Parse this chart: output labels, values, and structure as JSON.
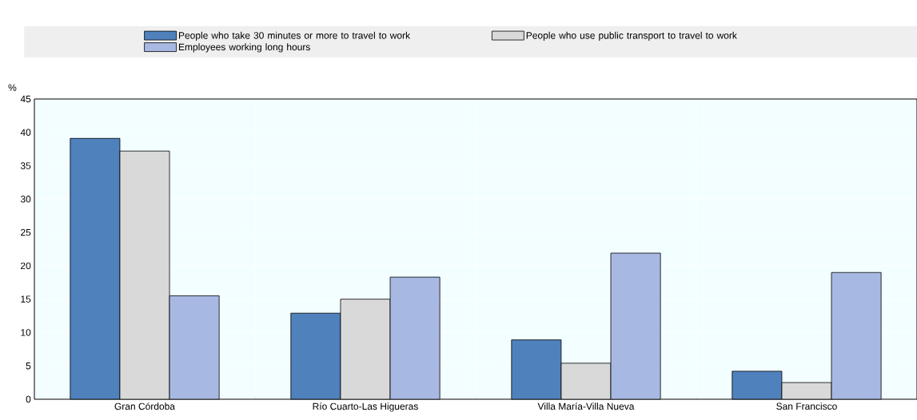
{
  "chart_data": {
    "type": "bar",
    "ylabel": "%",
    "categories": [
      "Gran Córdoba",
      "Río Cuarto-Las Higueras",
      "Villa María-Villa Nueva",
      "San Francisco"
    ],
    "series": [
      {
        "name": "People who take 30 minutes or more to travel to work",
        "color": "#4f81bd",
        "values": [
          39.1,
          12.9,
          8.9,
          4.2
        ]
      },
      {
        "name": "People who use public transport to travel to work",
        "color": "#d9d9d9",
        "values": [
          37.2,
          15.0,
          5.4,
          2.5
        ]
      },
      {
        "name": "Employees working long hours",
        "color": "#a7b9e3",
        "values": [
          15.5,
          18.3,
          21.9,
          19.0
        ]
      }
    ],
    "ylim": [
      0,
      45
    ],
    "yticks": [
      0,
      5,
      10,
      15,
      20,
      25,
      30,
      35,
      40,
      45
    ],
    "grid": true,
    "legend": "top"
  }
}
